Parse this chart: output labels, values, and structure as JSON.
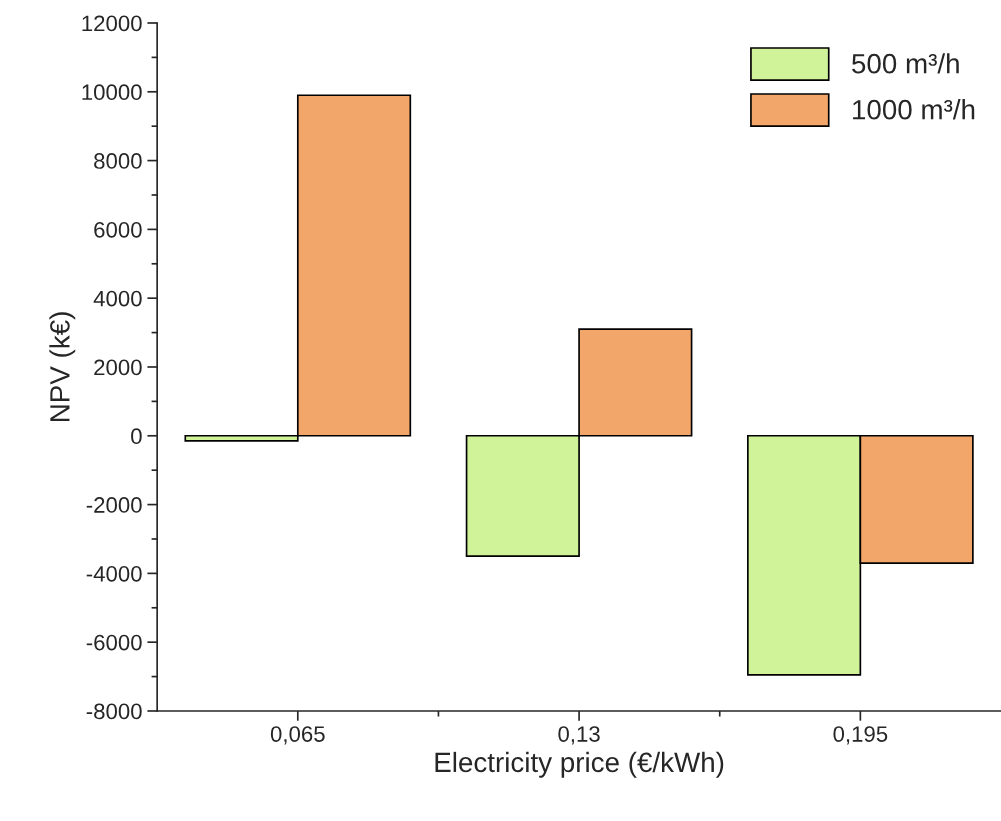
{
  "chart_data": {
    "type": "bar",
    "xlabel": "Electricity price (€/kWh)",
    "ylabel": "NPV (k€)",
    "categories": [
      "0,065",
      "0,13",
      "0,195"
    ],
    "series": [
      {
        "name": "500 m³/h",
        "color": "#d0f39a",
        "values": [
          -150,
          -3500,
          -6950
        ]
      },
      {
        "name": "1000 m³/h",
        "color": "#f3a66a",
        "values": [
          9900,
          3100,
          -3700
        ]
      }
    ],
    "ylim": [
      -8000,
      12000
    ],
    "yticks": [
      -8000,
      -6000,
      -4000,
      -2000,
      0,
      2000,
      4000,
      6000,
      8000,
      10000,
      12000
    ],
    "grid": false,
    "legend": "top right"
  }
}
